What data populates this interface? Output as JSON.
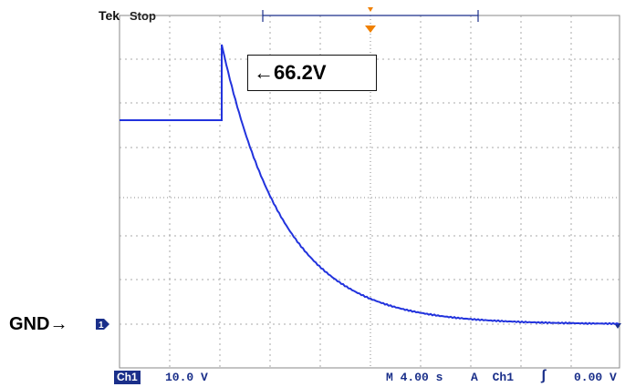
{
  "header": {
    "brand": "Tek",
    "acq_state": "Stop"
  },
  "annotations": {
    "peak_callout": "←66.2V",
    "ground_label": "GND→"
  },
  "channel_marker": {
    "label": "1",
    "icon": "ground-reference-marker"
  },
  "readouts": {
    "channel": "Ch1",
    "volts_per_div": "10.0 V",
    "timebase": "M 4.00 s",
    "trigger_mode": "A",
    "trigger_source": "Ch1",
    "trigger_slope_icon": "rising-edge-icon",
    "trigger_slope_glyph": "ʃ",
    "trigger_level": "0.00 V"
  },
  "colors": {
    "trace": "#2233dd",
    "grid": "#9a9a9a",
    "marker": "#1a2f8a",
    "trigger": "#f08000"
  }
}
